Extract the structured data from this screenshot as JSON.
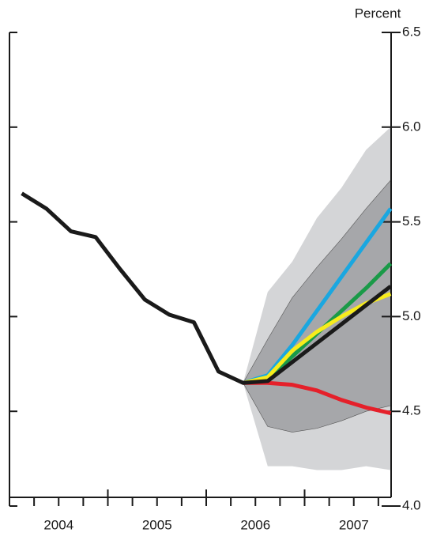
{
  "chart_data": {
    "type": "fan",
    "y_axis_label": "Percent",
    "x": [
      2004.125,
      2004.375,
      2004.625,
      2004.875,
      2005.125,
      2005.375,
      2005.625,
      2005.875,
      2006.125,
      2006.375,
      2006.625,
      2006.875,
      2007.125,
      2007.375,
      2007.625,
      2007.875
    ],
    "xlim": [
      2004,
      2007.875
    ],
    "xticks": [
      {
        "value": 2004.5,
        "label": "2004"
      },
      {
        "value": 2005.5,
        "label": "2005"
      },
      {
        "value": 2006.5,
        "label": "2006"
      },
      {
        "value": 2007.5,
        "label": "2007"
      }
    ],
    "ylim": [
      4,
      6.5
    ],
    "yticks": [
      {
        "value": 4,
        "label": "4.0"
      },
      4.5,
      {
        "value": 5,
        "label": "5.0"
      },
      5.5,
      {
        "value": 6,
        "label": "6.0"
      },
      6.5
    ],
    "bands": [
      {
        "color": "#d4d5d7",
        "upper": [
          null,
          null,
          null,
          null,
          null,
          null,
          null,
          null,
          null,
          4.65,
          5.13,
          5.29,
          5.52,
          5.68,
          5.88,
          6.0
        ],
        "lower": [
          null,
          null,
          null,
          null,
          null,
          null,
          null,
          null,
          null,
          4.65,
          4.21,
          4.21,
          4.19,
          4.19,
          4.21,
          4.19
        ]
      },
      {
        "color": "#a6a7aa",
        "upper": [
          null,
          null,
          null,
          null,
          null,
          null,
          null,
          null,
          null,
          4.65,
          4.88,
          5.1,
          5.26,
          5.41,
          5.57,
          5.72
        ],
        "lower": [
          null,
          null,
          null,
          null,
          null,
          null,
          null,
          null,
          null,
          4.65,
          4.42,
          4.39,
          4.41,
          4.45,
          4.5,
          4.53
        ]
      }
    ],
    "series": [
      {
        "color": "#1aa7e0",
        "values": [
          null,
          null,
          null,
          null,
          null,
          null,
          null,
          null,
          null,
          4.65,
          4.69,
          4.85,
          5.03,
          5.21,
          5.39,
          5.57
        ]
      },
      {
        "color": "#1a9a48",
        "values": [
          null,
          null,
          null,
          null,
          null,
          null,
          null,
          null,
          null,
          4.65,
          4.67,
          4.79,
          4.91,
          5.03,
          5.15,
          5.28
        ]
      },
      {
        "color": "#f7ec1c",
        "values": [
          null,
          null,
          null,
          null,
          null,
          null,
          null,
          null,
          null,
          4.65,
          4.68,
          4.82,
          4.92,
          5.0,
          5.07,
          5.12
        ]
      },
      {
        "color": "#e5202a",
        "values": [
          null,
          null,
          null,
          null,
          null,
          null,
          null,
          null,
          null,
          4.65,
          4.65,
          4.64,
          4.61,
          4.56,
          4.52,
          4.49
        ]
      },
      {
        "color": "#1a1a1a",
        "values": [
          5.65,
          5.57,
          5.45,
          5.42,
          5.25,
          5.09,
          5.01,
          4.97,
          4.71,
          4.65,
          4.66,
          4.76,
          4.86,
          4.96,
          5.06,
          5.16
        ]
      }
    ]
  }
}
